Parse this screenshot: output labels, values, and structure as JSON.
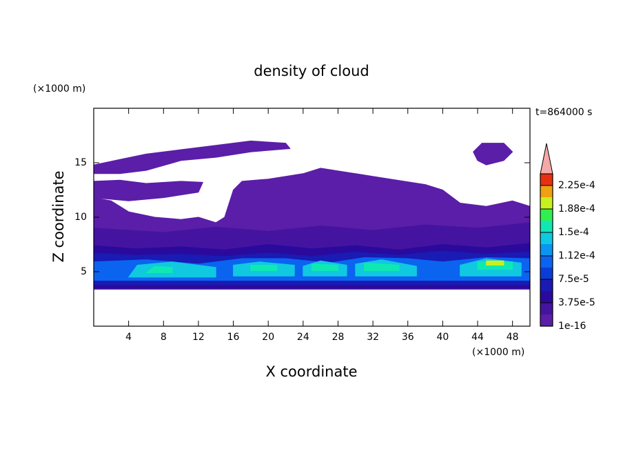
{
  "chart_data": {
    "type": "contour",
    "title": "density of cloud",
    "xlabel": "X coordinate",
    "ylabel": "Z coordinate",
    "x_unit": "(×1000 m)",
    "y_unit": "(×1000 m)",
    "annotation": "t=864000 s",
    "xlim": [
      0,
      50
    ],
    "ylim": [
      0,
      20
    ],
    "xticks": [
      4,
      8,
      12,
      16,
      20,
      24,
      28,
      32,
      36,
      40,
      44,
      48
    ],
    "yticks": [
      5,
      10,
      15
    ],
    "colorbar": {
      "lim": [
        1e-16,
        0.00024375
      ],
      "ticks": [
        {
          "value": 1e-16,
          "label": "1e-16"
        },
        {
          "value": 3.75e-05,
          "label": "3.75e-5"
        },
        {
          "value": 7.5e-05,
          "label": "7.5e-5"
        },
        {
          "value": 0.0001125,
          "label": "1.12e-4"
        },
        {
          "value": 0.00015,
          "label": "1.5e-4"
        },
        {
          "value": 0.0001875,
          "label": "1.88e-4"
        },
        {
          "value": 0.000225,
          "label": "2.25e-4"
        }
      ],
      "colors": [
        "#5b1ea8",
        "#4414a0",
        "#2a0a9c",
        "#1a1ab4",
        "#0a3cd8",
        "#0a64f0",
        "#0a96f0",
        "#10c8e0",
        "#10e8b4",
        "#30f050",
        "#c8f020",
        "#f0a010",
        "#e83010"
      ],
      "extend_color": "#f4a8a8"
    },
    "regions": [
      {
        "level": 0,
        "x": [
          0,
          50,
          50,
          48,
          45,
          42,
          40,
          38,
          34,
          30,
          26,
          24,
          20,
          17,
          16,
          15,
          14,
          12,
          10,
          7,
          4,
          2,
          0
        ],
        "z": [
          3.4,
          3.4,
          11,
          11.5,
          11,
          11.3,
          12.5,
          13,
          13.5,
          14,
          14.5,
          14,
          13.5,
          13.3,
          12.5,
          10,
          9.5,
          10,
          9.8,
          10,
          10.5,
          11.5,
          11.8
        ]
      },
      {
        "level": 0,
        "x": [
          0,
          4,
          8,
          12,
          12.5,
          10,
          6,
          3,
          0
        ],
        "z": [
          11.8,
          11.5,
          11.8,
          12.3,
          13.2,
          13.3,
          13.1,
          13.4,
          13.3
        ]
      },
      {
        "level": 0,
        "x": [
          0,
          3,
          6,
          10,
          14,
          18,
          22,
          22.5,
          18,
          14,
          10,
          6,
          3,
          0
        ],
        "z": [
          14.8,
          15.3,
          15.8,
          16.2,
          16.6,
          17,
          16.8,
          16.3,
          16,
          15.5,
          15.2,
          14.3,
          14,
          14
        ]
      },
      {
        "level": 0,
        "x": [
          43.5,
          44.5,
          47,
          48,
          47,
          45,
          44
        ],
        "z": [
          16,
          16.8,
          16.8,
          16,
          15.2,
          14.8,
          15.2
        ]
      },
      {
        "level": 1,
        "x": [
          0,
          50,
          50,
          44,
          38,
          32,
          26,
          20,
          14,
          8,
          0
        ],
        "z": [
          3.4,
          3.4,
          9.5,
          9,
          9.3,
          8.8,
          9.2,
          8.7,
          9.1,
          8.6,
          9
        ]
      },
      {
        "level": 2,
        "x": [
          0,
          50,
          50,
          45,
          40,
          35,
          30,
          25,
          20,
          15,
          10,
          5,
          0
        ],
        "z": [
          3.5,
          3.5,
          7.6,
          7.2,
          7.5,
          7,
          7.4,
          7.1,
          7.5,
          7,
          7.3,
          7.1,
          7.4
        ]
      },
      {
        "level": 3,
        "x": [
          0,
          50,
          50,
          45,
          40,
          35,
          30,
          25,
          20,
          15,
          10,
          5,
          0
        ],
        "z": [
          3.8,
          3.8,
          6.8,
          6.6,
          6.9,
          6.5,
          6.8,
          6.4,
          6.7,
          6.4,
          6.6,
          6.5,
          6.7
        ]
      },
      {
        "level": 5,
        "x": [
          0,
          50,
          50,
          45,
          40,
          36,
          31,
          27,
          22,
          17,
          12,
          6,
          0
        ],
        "z": [
          4.2,
          4.2,
          6.2,
          6.3,
          5.9,
          6.2,
          6.3,
          5.8,
          6.2,
          6.2,
          5.7,
          6.1,
          5.9
        ]
      },
      {
        "level": 7,
        "x": [
          4,
          14,
          14,
          9,
          5
        ],
        "z": [
          4.5,
          4.5,
          5.4,
          5.9,
          5.6
        ]
      },
      {
        "level": 7,
        "x": [
          16,
          23,
          23,
          19,
          16
        ],
        "z": [
          4.6,
          4.6,
          5.6,
          5.9,
          5.6
        ]
      },
      {
        "level": 7,
        "x": [
          24,
          29,
          29,
          26,
          24
        ],
        "z": [
          4.6,
          4.6,
          5.6,
          6,
          5.5
        ]
      },
      {
        "level": 7,
        "x": [
          30,
          37,
          37,
          33,
          30
        ],
        "z": [
          4.6,
          4.6,
          5.5,
          6.1,
          5.7
        ]
      },
      {
        "level": 7,
        "x": [
          42,
          49,
          49,
          45,
          42
        ],
        "z": [
          4.6,
          4.6,
          5.8,
          6.2,
          5.6
        ]
      },
      {
        "level": 8,
        "x": [
          6,
          9,
          9,
          7
        ],
        "z": [
          4.9,
          4.9,
          5.4,
          5.5
        ]
      },
      {
        "level": 8,
        "x": [
          18,
          21,
          21,
          18
        ],
        "z": [
          5.1,
          5.1,
          5.6,
          5.6
        ]
      },
      {
        "level": 8,
        "x": [
          25,
          28,
          28,
          25
        ],
        "z": [
          5.1,
          5.1,
          5.6,
          5.7
        ]
      },
      {
        "level": 8,
        "x": [
          31,
          35,
          35,
          31
        ],
        "z": [
          5.1,
          5.1,
          5.6,
          5.8
        ]
      },
      {
        "level": 8,
        "x": [
          44,
          48,
          48,
          44
        ],
        "z": [
          5.2,
          5.2,
          5.9,
          5.9
        ]
      },
      {
        "level": 10,
        "x": [
          45,
          47,
          47,
          45
        ],
        "z": [
          5.6,
          5.6,
          6,
          6
        ]
      }
    ]
  }
}
